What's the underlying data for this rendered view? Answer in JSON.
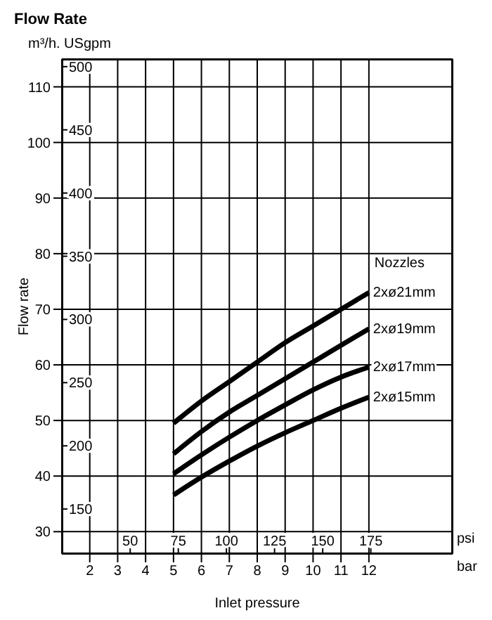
{
  "chart_data": {
    "type": "line",
    "title": "Flow Rate",
    "xlabel": "Inlet pressure",
    "ylabel": "Flow rate",
    "legend_title": "Nozzles",
    "annotations": [
      "m³/h. USgpm",
      "psi",
      "bar"
    ],
    "x": [
      5,
      6,
      7,
      8,
      9,
      10,
      11,
      12
    ],
    "series": [
      {
        "name": "2xø21mm",
        "color": "#000000",
        "values": [
          49.5,
          53.5,
          57,
          60.5,
          64,
          67,
          70,
          73
        ]
      },
      {
        "name": "2xø19mm",
        "color": "#000000",
        "values": [
          44,
          48,
          51.5,
          54.5,
          57.5,
          60.5,
          63.5,
          66.5
        ]
      },
      {
        "name": "2xø17mm",
        "color": "#000000",
        "values": [
          40.4,
          43.8,
          47,
          50,
          52.8,
          55.5,
          57.8,
          59.6
        ]
      },
      {
        "name": "2xø15mm",
        "color": "#000000",
        "values": [
          36.6,
          39.8,
          42.7,
          45.4,
          47.8,
          50,
          52.2,
          54.2
        ]
      }
    ],
    "xlim": [
      1,
      15
    ],
    "xticks": [
      2,
      3,
      4,
      5,
      6,
      7,
      8,
      9,
      10,
      11,
      12
    ],
    "x2lim": [
      14.5,
      217.5
    ],
    "x2ticks": [
      50,
      75,
      100,
      125,
      150,
      175
    ],
    "ylim": [
      26,
      115
    ],
    "yticks": [
      30,
      40,
      50,
      60,
      70,
      80,
      90,
      100,
      110
    ],
    "y2lim": [
      114.5,
      506
    ],
    "y2ticks": [
      150,
      200,
      250,
      300,
      350,
      400,
      450,
      500
    ],
    "grid": true,
    "marker": "none",
    "line_style": "solid"
  }
}
